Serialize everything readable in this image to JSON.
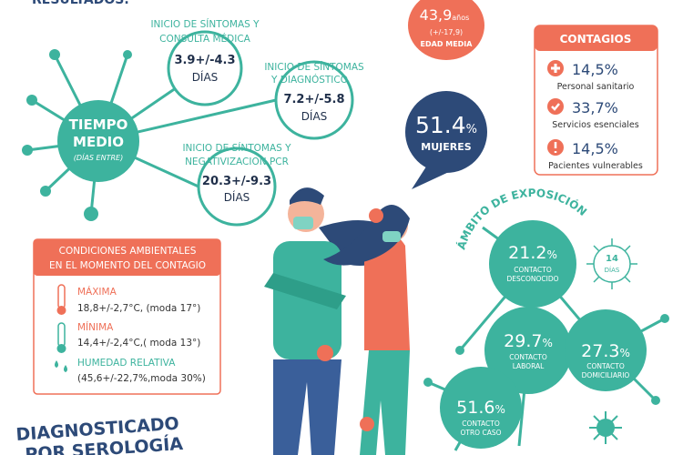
{
  "header": {
    "title": "RESULTADOS:"
  },
  "tiempo_medio": {
    "title_lines": [
      "TIEMPO",
      "MEDIO"
    ],
    "subtitle": "(DÍAS ENTRE)",
    "items": [
      {
        "label_lines": [
          "INICIO DE SÍNTOMAS Y",
          "CONSULTA MÉDICA"
        ],
        "value": "3.9+/-4.3",
        "unit": "DÍAS"
      },
      {
        "label_lines": [
          "INICIO DE SÍNTOMAS",
          "Y DIAGNÓSTICO"
        ],
        "value": "7.2+/-5.8",
        "unit": "DÍAS"
      },
      {
        "label_lines": [
          "INICIO DE SÍNTOMAS Y",
          "NEGATIVIZACION PCR"
        ],
        "value": "20.3+/-9.3",
        "unit": "DÍAS"
      }
    ]
  },
  "edad": {
    "value": "43,9",
    "unit": "años",
    "range": "(+/-17,9)",
    "label": "EDAD MEDIA"
  },
  "mujeres": {
    "value": "51.4",
    "unit": "%",
    "label": "MUJERES"
  },
  "contagios": {
    "title": "CONTAGIOS",
    "items": [
      {
        "value": "14,5%",
        "label": "Personal sanitario"
      },
      {
        "value": "33,7%",
        "label": "Servicios esenciales"
      },
      {
        "value": "14,5%",
        "label": "Pacientes vulnerables"
      }
    ]
  },
  "condiciones": {
    "title_lines": [
      "CONDICIONES AMBIENTALES",
      "EN EL MOMENTO DEL CONTAGIO"
    ],
    "items": [
      {
        "label": "MÁXIMA",
        "value": "18,8+/-2,7°C, (moda 17°)"
      },
      {
        "label": "MÍNIMA",
        "value": "14,4+/-2,4°C,( moda 13°)"
      },
      {
        "label": "HUMEDAD RELATIVA",
        "value": "(45,6+/-22,7%,moda 30%)"
      }
    ]
  },
  "exposicion": {
    "title": "ÁMBITO DE EXPOSICIÓN",
    "period_lines": [
      "14",
      "DÍAS"
    ],
    "items": [
      {
        "value": "21.2",
        "unit": "%",
        "label_lines": [
          "CONTACTO",
          "DESCONOCIDO"
        ]
      },
      {
        "value": "29.7",
        "unit": "%",
        "label_lines": [
          "CONTACTO",
          "LABORAL"
        ]
      },
      {
        "value": "27.3",
        "unit": "%",
        "label_lines": [
          "CONTACTO",
          "DOMICILIARIO"
        ]
      },
      {
        "value": "51.6",
        "unit": "%",
        "label_lines": [
          "CONTACTO",
          "OTRO CASO"
        ]
      }
    ]
  },
  "footer": {
    "lines": [
      "DIAGNOSTICADO",
      "POR SEROLOGÍA"
    ]
  }
}
